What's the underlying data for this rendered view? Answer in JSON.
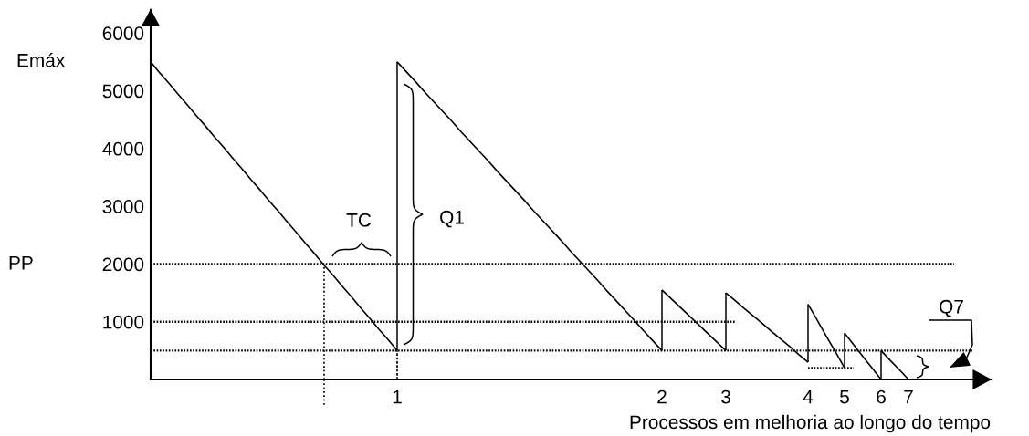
{
  "chart_data": {
    "type": "line",
    "xlabel": "Processos em melhoria ao longo do tempo",
    "categories": [
      null,
      null,
      null,
      null,
      null,
      null,
      null,
      null,
      null,
      null,
      null,
      null,
      null,
      null,
      null,
      null,
      null,
      null,
      null,
      null,
      null,
      null,
      null,
      null,
      null,
      null,
      null,
      "1",
      null,
      null,
      null,
      null,
      null,
      null,
      null,
      null,
      null,
      null,
      null,
      null,
      null,
      null,
      null,
      null,
      null,
      null,
      null,
      null,
      null,
      null,
      null,
      null,
      null,
      null,
      null,
      null,
      "2",
      null,
      null,
      null,
      null,
      null,
      null,
      "3",
      null,
      null,
      null,
      null,
      null,
      null,
      null,
      null,
      "4",
      null,
      null,
      null,
      "5",
      null,
      null,
      null,
      "6",
      null,
      null,
      "7",
      null,
      null,
      null,
      null,
      null,
      null,
      null,
      null,
      null
    ],
    "ylim": [
      0,
      6400
    ],
    "yticks": [
      1000,
      2000,
      3000,
      4000,
      5000,
      6000
    ],
    "series": [
      {
        "color": "#000000",
        "line_style": "solid",
        "values": [
          5500,
          5310,
          5130,
          4940,
          4760,
          4570,
          4390,
          4200,
          4020,
          3830,
          3650,
          3460,
          3280,
          3090,
          2910,
          2720,
          2540,
          2350,
          2170,
          1980,
          1800,
          1610,
          1430,
          1240,
          1060,
          870,
          690,
          500,
          null,
          null,
          null,
          null,
          null,
          null,
          null,
          null,
          null,
          null,
          null,
          null,
          null,
          null,
          null,
          null,
          null,
          null,
          null,
          null,
          null,
          null,
          null,
          null,
          null,
          null,
          null,
          null,
          1550,
          1400,
          1250,
          1100,
          950,
          800,
          650,
          500,
          null,
          null,
          null,
          null,
          null,
          null,
          null,
          null,
          1300,
          1030,
          750,
          480,
          200,
          null,
          null,
          null,
          500,
          330,
          170,
          0,
          null,
          null,
          null,
          null,
          null,
          null,
          null,
          null,
          null
        ]
      },
      {
        "color": "#000000",
        "line_style": "solid",
        "values": [
          null,
          null,
          null,
          null,
          null,
          null,
          null,
          null,
          null,
          null,
          null,
          null,
          null,
          null,
          null,
          null,
          null,
          null,
          null,
          null,
          null,
          null,
          null,
          null,
          null,
          null,
          null,
          5500,
          5330,
          5160,
          4980,
          4810,
          4640,
          4470,
          4290,
          4120,
          3950,
          3780,
          3600,
          3430,
          3260,
          3090,
          2910,
          2740,
          2570,
          2400,
          2220,
          2050,
          1880,
          1710,
          1530,
          1360,
          1190,
          1020,
          840,
          670,
          500,
          null,
          null,
          null,
          null,
          null,
          null,
          1500,
          1370,
          1230,
          1100,
          970,
          830,
          700,
          570,
          430,
          300,
          null,
          null,
          null,
          800,
          600,
          400,
          200,
          0,
          null,
          null,
          null,
          null,
          null,
          null,
          null,
          null,
          null,
          null,
          null,
          null
        ]
      },
      {
        "type": "bar",
        "color": "#000000",
        "line_style": "solid",
        "values": [
          null,
          null,
          null,
          null,
          null,
          null,
          null,
          null,
          null,
          null,
          null,
          null,
          null,
          null,
          null,
          null,
          null,
          null,
          null,
          null,
          null,
          null,
          null,
          null,
          null,
          null,
          null,
          5000,
          null,
          null,
          null,
          null,
          null,
          null,
          null,
          null,
          null,
          null,
          null,
          null,
          null,
          null,
          null,
          null,
          null,
          null,
          null,
          null,
          null,
          null,
          null,
          null,
          null,
          null,
          null,
          null,
          1050,
          null,
          null,
          null,
          null,
          null,
          null,
          1000,
          null,
          null,
          null,
          null,
          null,
          null,
          null,
          null,
          1000,
          null,
          null,
          null,
          600,
          null,
          null,
          null,
          500,
          null,
          null,
          null,
          null,
          null,
          null,
          null,
          null,
          null,
          null,
          null,
          null
        ],
        "base": [
          null,
          null,
          null,
          null,
          null,
          null,
          null,
          null,
          null,
          null,
          null,
          null,
          null,
          null,
          null,
          null,
          null,
          null,
          null,
          null,
          null,
          null,
          null,
          null,
          null,
          null,
          null,
          500,
          null,
          null,
          null,
          null,
          null,
          null,
          null,
          null,
          null,
          null,
          null,
          null,
          null,
          null,
          null,
          null,
          null,
          null,
          null,
          null,
          null,
          null,
          null,
          null,
          null,
          null,
          null,
          null,
          500,
          null,
          null,
          null,
          null,
          null,
          null,
          500,
          null,
          null,
          null,
          null,
          null,
          null,
          null,
          null,
          300,
          null,
          null,
          null,
          200,
          null,
          null,
          null,
          0,
          null,
          null,
          null,
          null,
          null,
          null,
          null,
          null,
          null,
          null,
          null,
          null
        ]
      },
      {
        "color": "#000000",
        "line_style": "dotted",
        "values": [
          2000,
          2000,
          2000,
          2000,
          2000,
          2000,
          2000,
          2000,
          2000,
          2000,
          2000,
          2000,
          2000,
          2000,
          2000,
          2000,
          2000,
          2000,
          2000,
          2000,
          2000,
          2000,
          2000,
          2000,
          2000,
          2000,
          2000,
          2000,
          2000,
          2000,
          2000,
          2000,
          2000,
          2000,
          2000,
          2000,
          2000,
          2000,
          2000,
          2000,
          2000,
          2000,
          2000,
          2000,
          2000,
          2000,
          2000,
          2000,
          2000,
          2000,
          2000,
          2000,
          2000,
          2000,
          2000,
          2000,
          2000,
          2000,
          2000,
          2000,
          2000,
          2000,
          2000,
          2000,
          2000,
          2000,
          2000,
          2000,
          2000,
          2000,
          2000,
          2000,
          2000,
          2000,
          2000,
          2000,
          2000,
          2000,
          2000,
          2000,
          2000,
          2000,
          2000,
          2000,
          2000,
          2000,
          2000,
          2000,
          2000,
          null,
          null,
          null,
          null
        ]
      },
      {
        "color": "#000000",
        "line_style": "dotted",
        "values": [
          1000,
          1000,
          1000,
          1000,
          1000,
          1000,
          1000,
          1000,
          1000,
          1000,
          1000,
          1000,
          1000,
          1000,
          1000,
          1000,
          1000,
          1000,
          1000,
          1000,
          1000,
          1000,
          1000,
          1000,
          1000,
          1000,
          1000,
          1000,
          1000,
          1000,
          1000,
          1000,
          1000,
          1000,
          1000,
          1000,
          1000,
          1000,
          1000,
          1000,
          1000,
          1000,
          1000,
          1000,
          1000,
          1000,
          1000,
          1000,
          1000,
          1000,
          1000,
          1000,
          1000,
          1000,
          1000,
          1000,
          1000,
          1000,
          1000,
          1000,
          1000,
          1000,
          1000,
          1000,
          1000,
          null,
          null,
          null,
          null,
          null,
          null,
          null,
          null,
          null,
          null,
          null,
          null,
          null,
          null,
          null,
          null,
          null,
          null,
          null,
          null,
          null,
          null,
          null,
          null,
          null,
          null,
          null,
          null
        ]
      },
      {
        "color": "#000000",
        "line_style": "dotted",
        "values": [
          500,
          500,
          500,
          500,
          500,
          500,
          500,
          500,
          500,
          500,
          500,
          500,
          500,
          500,
          500,
          500,
          500,
          500,
          500,
          500,
          500,
          500,
          500,
          500,
          500,
          500,
          500,
          500,
          500,
          500,
          500,
          500,
          500,
          500,
          500,
          500,
          500,
          500,
          500,
          500,
          500,
          500,
          500,
          500,
          500,
          500,
          500,
          500,
          500,
          500,
          500,
          500,
          500,
          500,
          500,
          500,
          500,
          500,
          500,
          500,
          500,
          500,
          500,
          500,
          500,
          500,
          500,
          500,
          500,
          500,
          500,
          500,
          500,
          500,
          500,
          500,
          500,
          500,
          500,
          500,
          500,
          500,
          500,
          500,
          500,
          500,
          500,
          500,
          500,
          500,
          500,
          null,
          null
        ]
      },
      {
        "color": "#000000",
        "line_style": "dotted",
        "values": [
          null,
          null,
          null,
          null,
          null,
          null,
          null,
          null,
          null,
          null,
          null,
          null,
          null,
          null,
          null,
          null,
          null,
          null,
          null,
          null,
          null,
          null,
          null,
          null,
          null,
          null,
          null,
          null,
          null,
          null,
          null,
          null,
          null,
          null,
          null,
          null,
          null,
          null,
          null,
          null,
          null,
          null,
          null,
          null,
          null,
          null,
          null,
          null,
          null,
          null,
          null,
          null,
          null,
          null,
          null,
          null,
          null,
          null,
          null,
          null,
          null,
          null,
          null,
          null,
          null,
          null,
          null,
          null,
          null,
          null,
          null,
          null,
          200,
          200,
          200,
          200,
          200,
          200,
          null,
          null,
          null,
          null,
          null,
          null,
          null,
          null,
          null,
          null,
          null,
          null,
          null,
          null,
          null
        ]
      },
      {
        "type": "bar",
        "color": "#000000",
        "line_style": "dotted",
        "values": [
          null,
          null,
          null,
          null,
          null,
          null,
          null,
          null,
          null,
          null,
          null,
          null,
          null,
          null,
          null,
          null,
          null,
          null,
          null,
          2000,
          null,
          null,
          null,
          null,
          null,
          null,
          null,
          500,
          null,
          null,
          null,
          null,
          null,
          null,
          null,
          null,
          null,
          null,
          null,
          null,
          null,
          null,
          null,
          null,
          null,
          null,
          null,
          null,
          null,
          null,
          null,
          null,
          null,
          null,
          null,
          null,
          null,
          null,
          null,
          null,
          null,
          null,
          null,
          null,
          null,
          null,
          null,
          null,
          null,
          null,
          null,
          null,
          null,
          null,
          null,
          null,
          null,
          null,
          null,
          null,
          null,
          null,
          null,
          null,
          null,
          null,
          null,
          null,
          null,
          null,
          null,
          null,
          null
        ],
        "base": [
          null,
          null,
          null,
          null,
          null,
          null,
          null,
          null,
          null,
          null,
          null,
          null,
          null,
          null,
          null,
          null,
          null,
          null,
          null,
          0,
          null,
          null,
          null,
          null,
          null,
          null,
          null,
          0,
          null,
          null,
          null,
          null,
          null,
          null,
          null,
          null,
          null,
          null,
          null,
          null,
          null,
          null,
          null,
          null,
          null,
          null,
          null,
          null,
          null,
          null,
          null,
          null,
          null,
          null,
          null,
          null,
          null,
          null,
          null,
          null,
          null,
          null,
          null,
          null,
          null,
          null,
          null,
          null,
          null,
          null,
          null,
          null,
          null,
          null,
          null,
          null,
          null,
          null,
          null,
          null,
          null,
          null,
          null,
          null,
          null,
          null,
          null,
          null,
          null,
          null,
          null,
          null,
          null
        ]
      }
    ],
    "annotations": [
      "Emáx",
      "PP",
      "TC",
      "Q1",
      "Q7"
    ]
  }
}
